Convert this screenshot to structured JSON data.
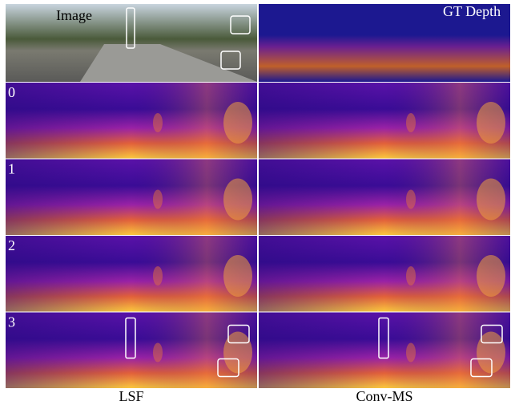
{
  "figure": {
    "image_label": "Image",
    "gt_label": "GT Depth",
    "rows": [
      "0",
      "1",
      "2",
      "3"
    ],
    "columns": [
      "LSF",
      "Conv-MS"
    ]
  }
}
